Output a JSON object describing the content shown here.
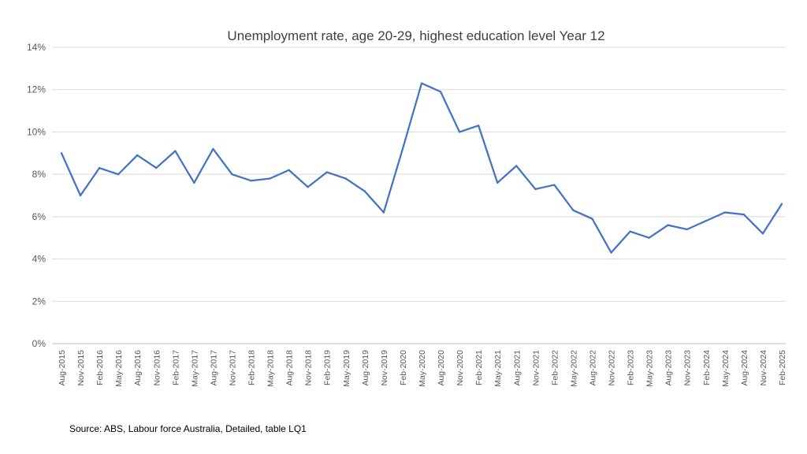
{
  "chart_data": {
    "type": "line",
    "title": "Unemployment rate, age 20-29, highest education level Year 12",
    "xlabel": "",
    "ylabel": "",
    "ylim": [
      0,
      14
    ],
    "yticks": [
      0,
      2,
      4,
      6,
      8,
      10,
      12,
      14
    ],
    "ytick_labels": [
      "0%",
      "2%",
      "4%",
      "6%",
      "8%",
      "10%",
      "12%",
      "14%"
    ],
    "grid": true,
    "legend": "none",
    "categories": [
      "Aug-2015",
      "Nov-2015",
      "Feb-2016",
      "May-2016",
      "Aug-2016",
      "Nov-2016",
      "Feb-2017",
      "May-2017",
      "Aug-2017",
      "Nov-2017",
      "Feb-2018",
      "May-2018",
      "Aug-2018",
      "Nov-2018",
      "Feb-2019",
      "May-2019",
      "Aug-2019",
      "Nov-2019",
      "Feb-2020",
      "May-2020",
      "Aug-2020",
      "Nov-2020",
      "Feb-2021",
      "May-2021",
      "Aug-2021",
      "Nov-2021",
      "Feb-2022",
      "May-2022",
      "Aug-2022",
      "Nov-2022",
      "Feb-2023",
      "May-2023",
      "Aug-2023",
      "Nov-2023",
      "Feb-2024",
      "May-2024",
      "Aug-2024",
      "Nov-2024",
      "Feb-2025"
    ],
    "series": [
      {
        "values": [
          9.0,
          7.0,
          8.3,
          8.0,
          8.9,
          8.3,
          9.1,
          7.6,
          9.2,
          8.0,
          7.7,
          7.8,
          8.2,
          7.4,
          8.1,
          7.8,
          7.2,
          6.2,
          9.2,
          12.3,
          11.9,
          10.0,
          10.3,
          7.6,
          8.4,
          7.3,
          7.5,
          6.3,
          5.9,
          4.3,
          5.3,
          5.0,
          5.6,
          5.4,
          5.8,
          6.2,
          6.1,
          5.2,
          6.6
        ],
        "color": "#4472C4"
      }
    ],
    "source": "Source: ABS, Labour force Australia, Detailed, table LQ1"
  }
}
